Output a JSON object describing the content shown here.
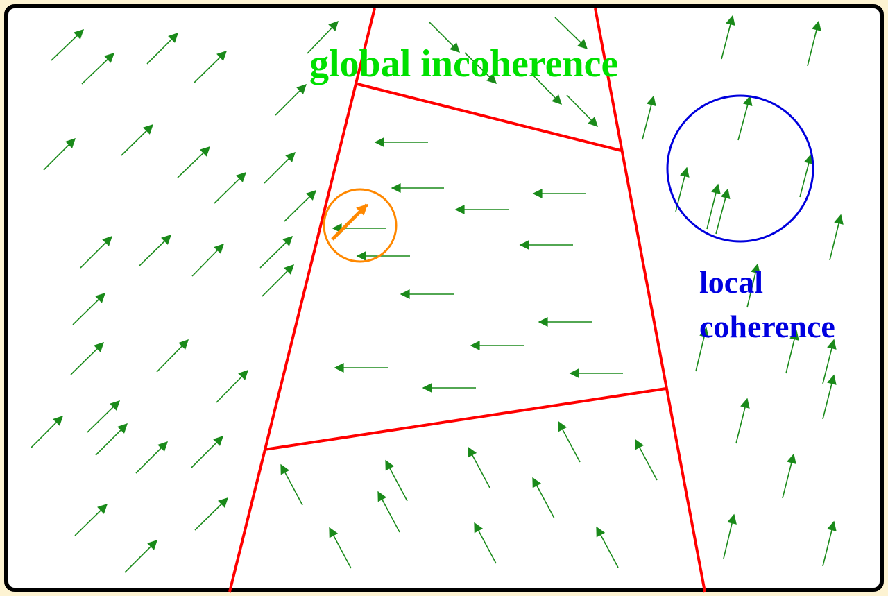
{
  "labels": {
    "global": "global incoherence",
    "local_line1": "local",
    "local_line2": "coherence"
  },
  "colors": {
    "background": "#fdf3d2",
    "frame_border": "#000000",
    "frame_fill": "#ffffff",
    "arrows": "#1a8a1a",
    "boundaries": "#ff0000",
    "global_text": "#00e000",
    "local_text": "#0000e0",
    "local_circle": "#0000dd",
    "highlight": "#ff8800"
  },
  "icons": {
    "vector_arrow": "arrow-icon",
    "highlight_arrow": "highlighted-arrow-icon"
  }
}
